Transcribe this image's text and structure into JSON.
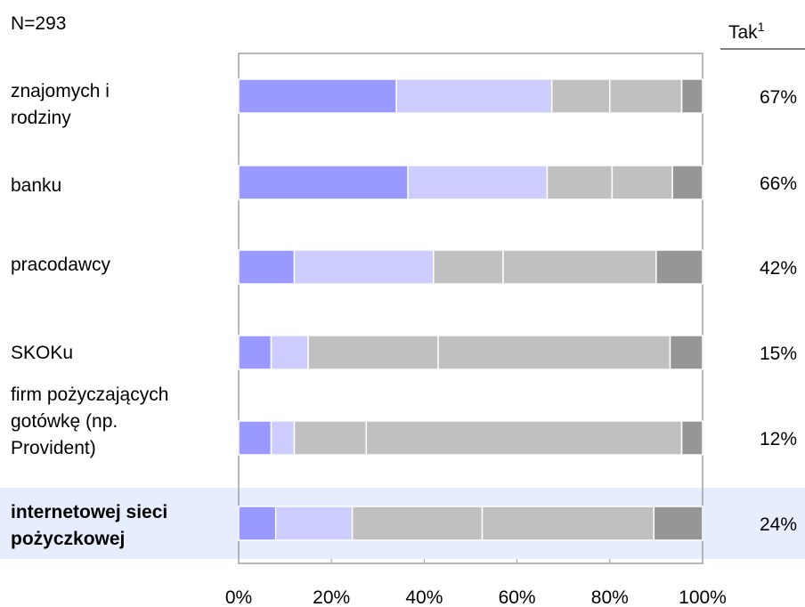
{
  "chart_data": {
    "type": "bar",
    "orientation": "horizontal",
    "stacked": true,
    "normalized_percent": true,
    "sample_label": "N=293",
    "right_column_header": "Tak",
    "right_column_header_superscript": "1",
    "categories": [
      "znajomych i rodziny",
      "banku",
      "pracodawcy",
      "SKOKu",
      "firm pożyczających gotówkę (np. Provident)",
      "internetowej sieci pożyczkowej"
    ],
    "highlighted_category": "internetowej sieci pożyczkowej",
    "segment_colors": [
      "#9999ff",
      "#ccccff",
      "#c0c0c0",
      "#c0c0c0",
      "#969696"
    ],
    "segments": [
      [
        34,
        33.5,
        12.5,
        15.5,
        4.5
      ],
      [
        36.5,
        30,
        14,
        13,
        6.5
      ],
      [
        12,
        30,
        15,
        33,
        10
      ],
      [
        7,
        8,
        28,
        50,
        7
      ],
      [
        7,
        5,
        15.5,
        68,
        4.5
      ],
      [
        8,
        16.5,
        28,
        37,
        10.5
      ]
    ],
    "tak_values": [
      "67%",
      "66%",
      "42%",
      "15%",
      "12%",
      "24%"
    ],
    "x_ticks": [
      "0%",
      "20%",
      "40%",
      "60%",
      "80%",
      "100%"
    ],
    "xlim": [
      0,
      100
    ],
    "highlight_color": "#e6edfc"
  }
}
